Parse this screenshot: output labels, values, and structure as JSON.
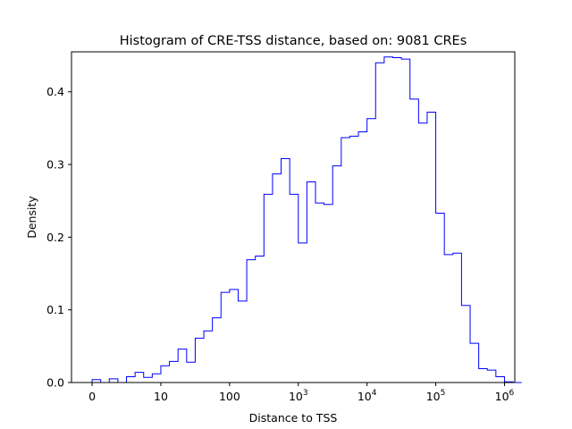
{
  "chart_data": {
    "type": "histogram",
    "title": "Histogram of CRE-TSS distance, based on: 9081 CREs",
    "xlabel": "Distance to TSS",
    "ylabel": "Density",
    "x_scale": "symlog",
    "xlim": [
      -0.3,
      6.15
    ],
    "ylim": [
      0,
      0.455
    ],
    "grid": false,
    "x_ticks": [
      {
        "pos": 0,
        "label": "0"
      },
      {
        "pos": 1,
        "label": "10"
      },
      {
        "pos": 2,
        "label": "100"
      },
      {
        "pos": 3,
        "label": "10",
        "exp": "3"
      },
      {
        "pos": 4,
        "label": "10",
        "exp": "4"
      },
      {
        "pos": 5,
        "label": "10",
        "exp": "5"
      },
      {
        "pos": 6,
        "label": "10",
        "exp": "6"
      }
    ],
    "y_ticks": [
      {
        "value": 0.0,
        "label": "0.0"
      },
      {
        "value": 0.1,
        "label": "0.1"
      },
      {
        "value": 0.2,
        "label": "0.2"
      },
      {
        "value": 0.3,
        "label": "0.3"
      },
      {
        "value": 0.4,
        "label": "0.4"
      }
    ],
    "series": [
      {
        "color": "#0000ff",
        "bin_start": 0,
        "bin_width": 0.125,
        "values": [
          0.004,
          0.0,
          0.005,
          0.0,
          0.008,
          0.014,
          0.007,
          0.012,
          0.023,
          0.029,
          0.046,
          0.028,
          0.061,
          0.071,
          0.089,
          0.124,
          0.128,
          0.112,
          0.169,
          0.174,
          0.259,
          0.287,
          0.308,
          0.259,
          0.192,
          0.276,
          0.247,
          0.245,
          0.298,
          0.337,
          0.339,
          0.345,
          0.363,
          0.44,
          0.448,
          0.447,
          0.445,
          0.39,
          0.357,
          0.372,
          0.233,
          0.176,
          0.178,
          0.106,
          0.054,
          0.019,
          0.017,
          0.008,
          0.001,
          0.0
        ]
      }
    ]
  }
}
